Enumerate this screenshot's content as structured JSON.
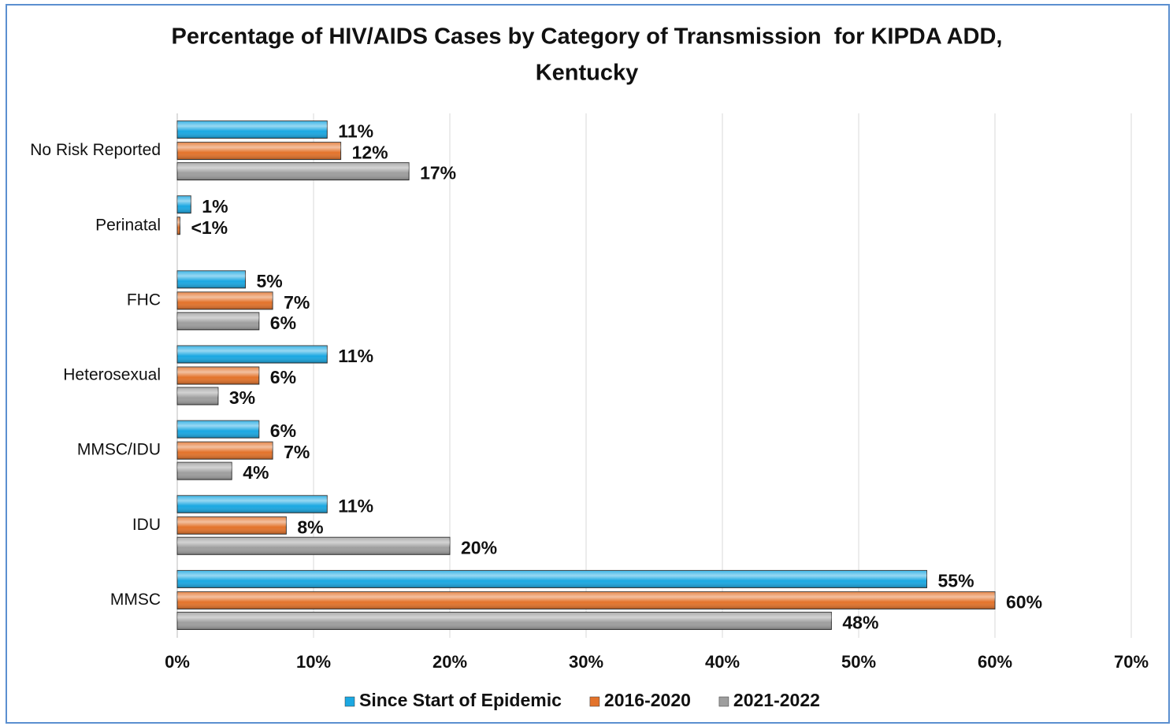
{
  "chart_data": {
    "type": "hbar",
    "title": [
      "Percentage of HIV/AIDS Cases by Category of Transmission  for KIPDA ADD,",
      "Kentucky"
    ],
    "categories": [
      "No Risk Reported",
      "Perinatal",
      "FHC",
      "Heterosexual",
      "MMSC/IDU",
      "IDU",
      "MMSC"
    ],
    "series": [
      {
        "name": "Since Start of Epidemic",
        "color": "#1ba8e2",
        "values": [
          11,
          1,
          5,
          11,
          6,
          11,
          55
        ],
        "value_labels": [
          "11%",
          "1%",
          "5%",
          "11%",
          "6%",
          "11%",
          "55%"
        ]
      },
      {
        "name": "2016-2020",
        "color": "#e3732b",
        "values": [
          12,
          0.2,
          7,
          6,
          7,
          8,
          60
        ],
        "value_labels": [
          "12%",
          "<1%",
          "7%",
          "6%",
          "7%",
          "8%",
          "60%"
        ]
      },
      {
        "name": "2021-2022",
        "color": "#9e9e9e",
        "values": [
          17,
          null,
          6,
          3,
          4,
          20,
          48
        ],
        "value_labels": [
          "17%",
          null,
          "6%",
          "3%",
          "4%",
          "20%",
          "48%"
        ]
      }
    ],
    "xlim": [
      0,
      70
    ],
    "xticks": [
      {
        "value": 0,
        "label": "0%"
      },
      {
        "value": 10,
        "label": "10%"
      },
      {
        "value": 20,
        "label": "20%"
      },
      {
        "value": 30,
        "label": "30%"
      },
      {
        "value": 40,
        "label": "40%"
      },
      {
        "value": 50,
        "label": "50%"
      },
      {
        "value": 60,
        "label": "60%"
      },
      {
        "value": 70,
        "label": "70%"
      }
    ],
    "grid": true,
    "legend": "bottom"
  }
}
